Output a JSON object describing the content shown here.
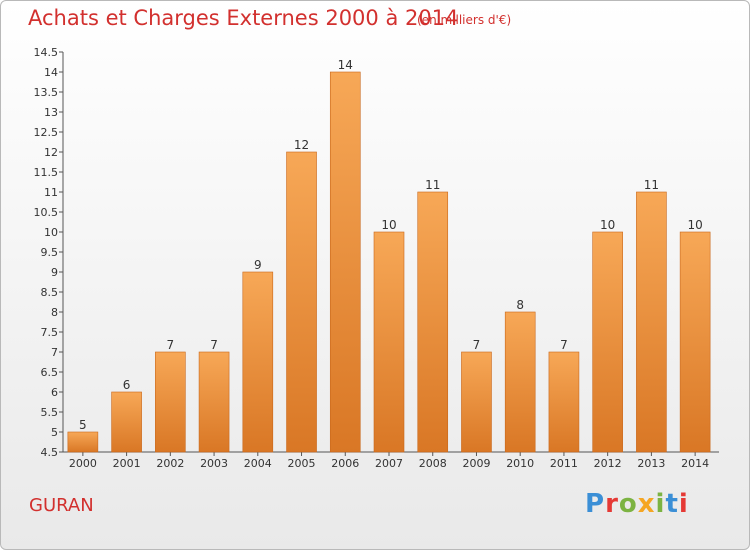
{
  "header": {
    "title": "Achats et Charges Externes 2000 à 2014",
    "subtitle": "(en milliers d'€)"
  },
  "footer": {
    "place": "GURAN",
    "brand": "Proxiti",
    "brand_colors": [
      "#3b8fd6",
      "#e53935",
      "#7cb342",
      "#f5a623",
      "#7cb342",
      "#3b8fd6",
      "#e53935"
    ]
  },
  "colors": {
    "bar_light": "#f7a857",
    "bar_dark": "#d97725",
    "axis": "#555555",
    "title": "#d2302e"
  },
  "chart_data": {
    "type": "bar",
    "title": "Achats et Charges Externes 2000 à 2014",
    "subtitle": "(en milliers d'€)",
    "xlabel": "",
    "ylabel": "",
    "categories": [
      "2000",
      "2001",
      "2002",
      "2003",
      "2004",
      "2005",
      "2006",
      "2007",
      "2008",
      "2009",
      "2010",
      "2011",
      "2012",
      "2013",
      "2014"
    ],
    "values": [
      5,
      6,
      7,
      7,
      9,
      12,
      14,
      10,
      11,
      7,
      8,
      7,
      10,
      11,
      10
    ],
    "data_labels": [
      "5",
      "6",
      "7",
      "7",
      "9",
      "12",
      "14",
      "10",
      "11",
      "7",
      "8",
      "7",
      "10",
      "11",
      "10"
    ],
    "ylim": [
      4.5,
      14.5
    ],
    "yticks": [
      4.5,
      5,
      5.5,
      6,
      6.5,
      7,
      7.5,
      8,
      8.5,
      9,
      9.5,
      10,
      10.5,
      11,
      11.5,
      12,
      12.5,
      13,
      13.5,
      14,
      14.5
    ],
    "ytick_labels": [
      "4.5",
      "5",
      "5.5",
      "6",
      "6.5",
      "7",
      "7.5",
      "8",
      "8.5",
      "9",
      "9.5",
      "10",
      "10.5",
      "11",
      "11.5",
      "12",
      "12.5",
      "13",
      "13.5",
      "14",
      "14.5"
    ],
    "grid": false,
    "legend": "none"
  }
}
